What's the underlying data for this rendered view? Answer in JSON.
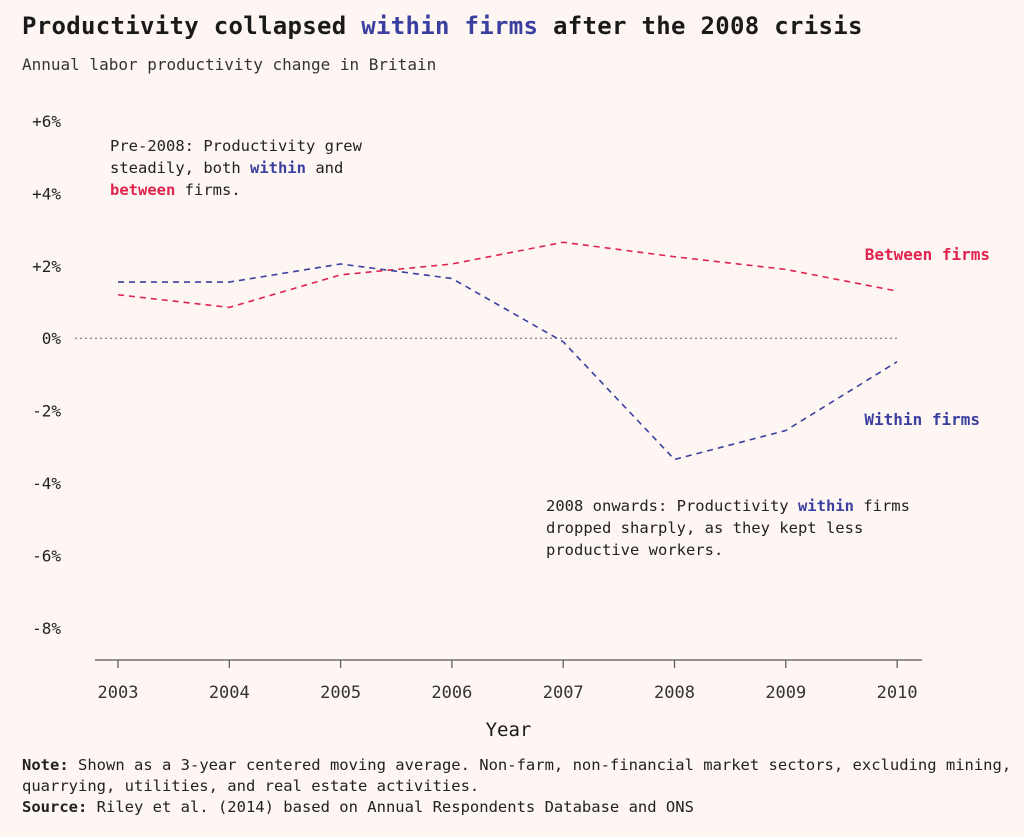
{
  "header": {
    "title_part1": "Productivity collapsed ",
    "title_highlight": "within firms",
    "title_part2": " after the 2008 crisis",
    "subtitle": "Annual labor productivity change in Britain"
  },
  "annotations": {
    "pre2008": {
      "line1": "Pre-2008: Productivity grew",
      "line2_a": "steadily, both ",
      "line2_within": "within",
      "line2_b": " and",
      "line3_between": "between",
      "line3_b": " firms."
    },
    "post2008": {
      "line1_a": "2008 onwards: Productivity ",
      "line1_within": "within",
      "line1_b": " firms",
      "line2": "dropped sharply, as they kept less",
      "line3": "productive workers."
    }
  },
  "footer": {
    "note_label": "Note:",
    "note_text": " Shown as a 3-year centered moving average. Non-farm, non-financial market sectors, excluding mining, quarrying, utilities, and real estate activities.",
    "source_label": "Source:",
    "source_text": " Riley et al. (2014) based on Annual Respondents Database and ONS"
  },
  "colors": {
    "within": "#3b3fa0",
    "between": "#e0234e",
    "background": "#fdf6f3",
    "axis": "#555555"
  },
  "chart_data": {
    "type": "line",
    "title": "Productivity collapsed within firms after the 2008 crisis",
    "subtitle": "Annual labor productivity change in Britain",
    "xlabel": "Year",
    "ylabel": "",
    "x": [
      "2003",
      "2004",
      "2005",
      "2006",
      "2007",
      "2008",
      "2009",
      "2010"
    ],
    "ylim": [
      -9,
      6
    ],
    "yticks": [
      6,
      4,
      2,
      0,
      -2,
      -4,
      -6,
      -8
    ],
    "ytick_labels": [
      "+6%",
      "+4%",
      "+2%",
      "0%",
      "-2%",
      "-4%",
      "-6%",
      "-8%"
    ],
    "series": [
      {
        "name": "Between firms",
        "color": "#e0234e",
        "values": [
          1.2,
          0.85,
          1.75,
          2.05,
          2.65,
          2.25,
          1.9,
          1.3
        ]
      },
      {
        "name": "Within firms",
        "color": "#3b3fa0",
        "values": [
          1.55,
          1.55,
          2.05,
          1.65,
          -0.1,
          -3.35,
          -2.55,
          -0.65
        ]
      }
    ],
    "zero_line": "dotted",
    "line_style": "dashed",
    "grid": false
  }
}
